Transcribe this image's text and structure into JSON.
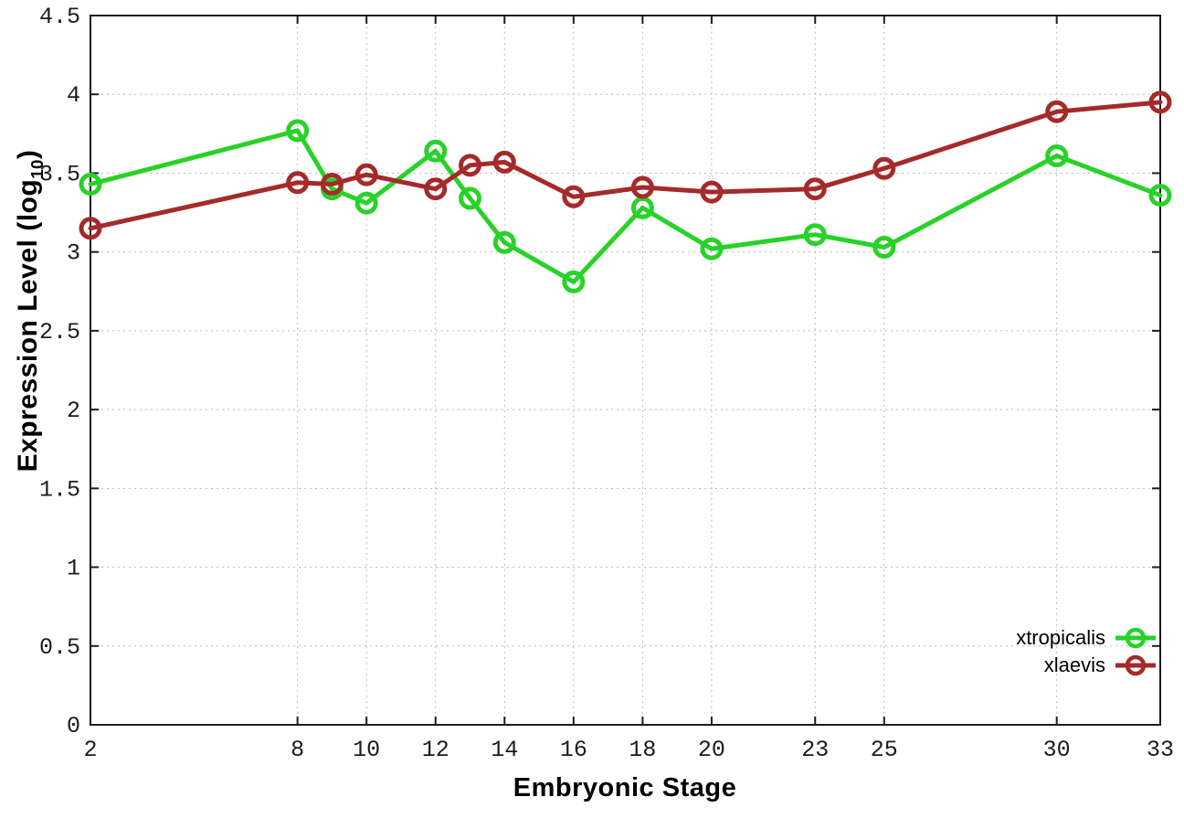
{
  "figure": {
    "background": "#ffffff",
    "border_color": "#1c1c1c",
    "grid_color": "#bababa",
    "tick_text_color": "#1c1c1c"
  },
  "chart_data": {
    "type": "line",
    "title": "",
    "xlabel": "Embryonic Stage",
    "ylabel": "Expression Level (log10)",
    "ylabel_prefix": "Expression Level (log",
    "ylabel_sub": "10",
    "ylabel_suffix": ")",
    "xlim": [
      2,
      33
    ],
    "ylim": [
      0,
      4.5
    ],
    "grid": true,
    "legend_position": "bottom-right",
    "marker": "open-circle",
    "x": [
      2,
      8,
      9,
      10,
      12,
      13,
      14,
      16,
      18,
      20,
      23,
      25,
      30,
      33
    ],
    "series": [
      {
        "name": "xtropicalis",
        "color": "#28d228",
        "values": [
          3.43,
          3.77,
          3.4,
          3.31,
          3.64,
          3.34,
          3.06,
          2.81,
          3.28,
          3.02,
          3.11,
          3.03,
          3.61,
          3.36
        ]
      },
      {
        "name": "xlaevis",
        "color": "#a52a2a",
        "values": [
          3.15,
          3.44,
          3.43,
          3.49,
          3.4,
          3.55,
          3.57,
          3.35,
          3.41,
          3.38,
          3.4,
          3.53,
          3.89,
          3.95
        ]
      }
    ],
    "x_ticks": [
      2,
      8,
      10,
      12,
      14,
      16,
      18,
      20,
      23,
      25,
      30,
      33
    ],
    "y_ticks": [
      {
        "v": 0,
        "label": "0"
      },
      {
        "v": 0.5,
        "label": "0.5"
      },
      {
        "v": 1,
        "label": "1"
      },
      {
        "v": 1.5,
        "label": "1.5"
      },
      {
        "v": 2,
        "label": "2"
      },
      {
        "v": 2.5,
        "label": "2.5"
      },
      {
        "v": 3,
        "label": "3"
      },
      {
        "v": 3.5,
        "label": "3.5"
      },
      {
        "v": 4,
        "label": "4"
      },
      {
        "v": 4.5,
        "label": "4.5"
      }
    ]
  }
}
